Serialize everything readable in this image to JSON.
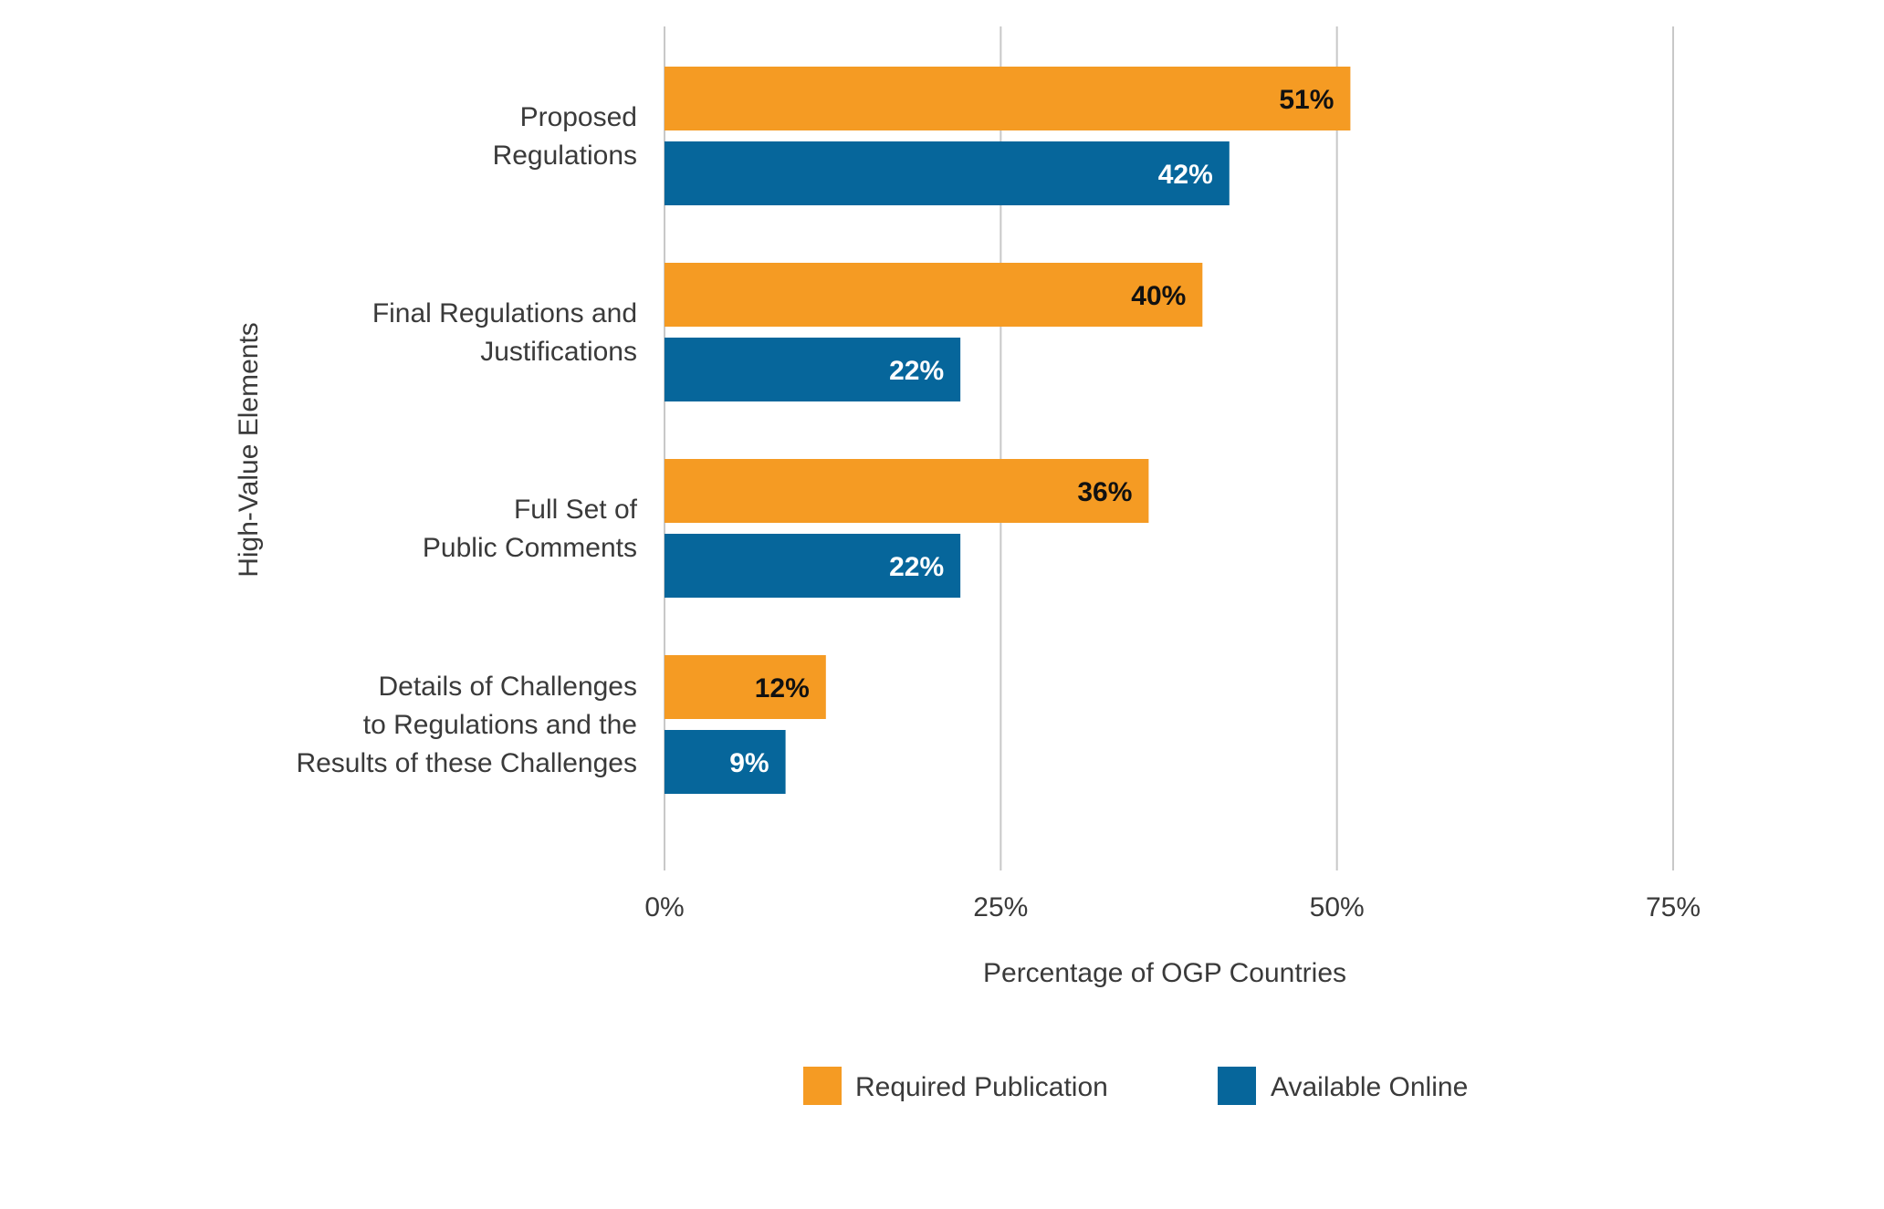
{
  "chart_data": {
    "type": "bar",
    "orientation": "horizontal",
    "title": "",
    "xlabel": "Percentage of OGP Countries",
    "ylabel": "High-Value Elements",
    "xlim": [
      0,
      75
    ],
    "xticks": [
      0,
      25,
      50,
      75
    ],
    "xtick_labels": [
      "0%",
      "25%",
      "50%",
      "75%"
    ],
    "grid": true,
    "legend_position": "bottom-center",
    "categories": [
      [
        "Proposed",
        "Regulations"
      ],
      [
        "Final Regulations and",
        "Justifications"
      ],
      [
        "Full Set of",
        "Public Comments"
      ],
      [
        "Details of Challenges",
        "to Regulations and the",
        "Results of these Challenges"
      ]
    ],
    "series": [
      {
        "name": "Required Publication",
        "color": "#F59B23",
        "label_color": "#111111",
        "values": [
          51,
          40,
          36,
          12
        ],
        "labels": [
          "51%",
          "40%",
          "36%",
          "12%"
        ]
      },
      {
        "name": "Available Online",
        "color": "#06669B",
        "label_color": "#ffffff",
        "values": [
          42,
          22,
          22,
          9
        ],
        "labels": [
          "42%",
          "22%",
          "22%",
          "9%"
        ]
      }
    ]
  },
  "colors": {
    "grid": "#c8c8c8",
    "text": "#3a3a3a",
    "background": "#ffffff"
  }
}
